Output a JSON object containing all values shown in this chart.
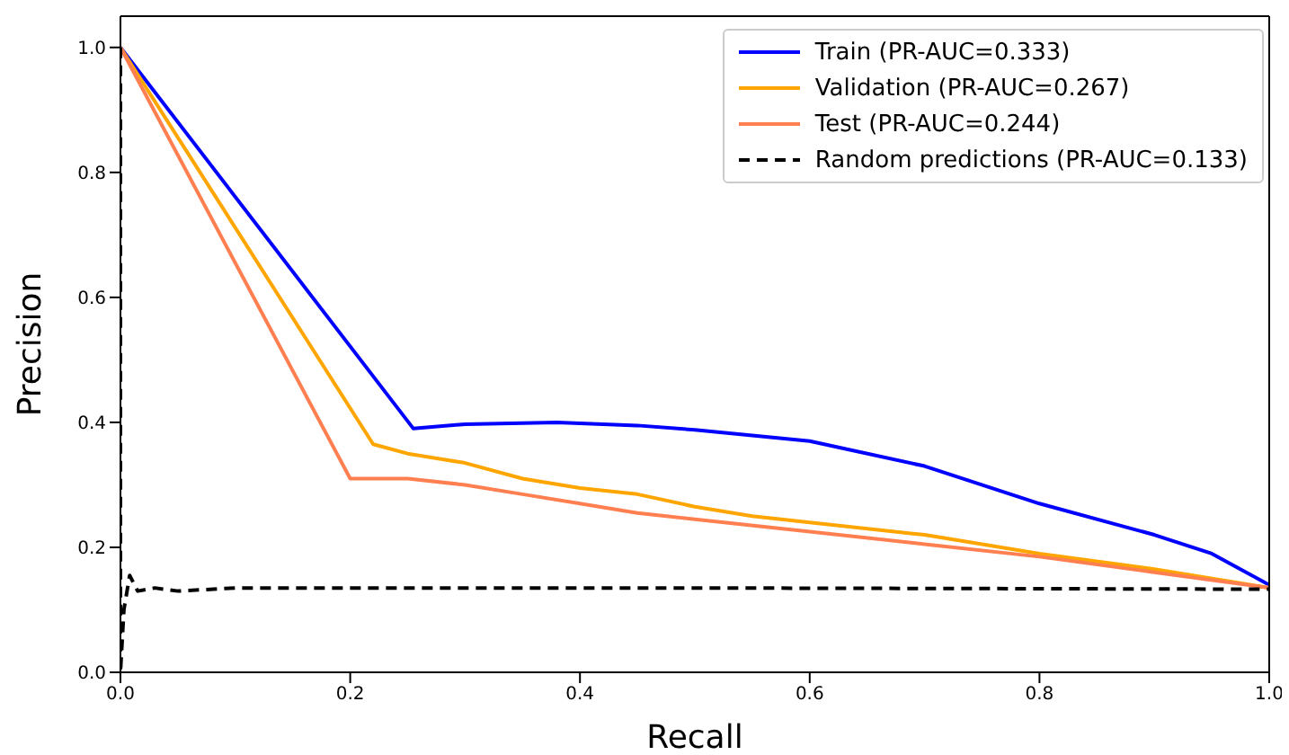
{
  "chart_data": {
    "type": "line",
    "xlabel": "Recall",
    "ylabel": "Precision",
    "xlim": [
      0,
      1
    ],
    "ylim": [
      0,
      1.05
    ],
    "xticks": [
      {
        "value": 0,
        "label": "0.0"
      },
      0.2,
      0.4,
      0.6,
      0.8,
      {
        "value": 1,
        "label": "1.0"
      }
    ],
    "yticks": [
      {
        "value": 0,
        "label": "0.0"
      },
      0.2,
      0.4,
      0.6,
      0.8,
      {
        "value": 1,
        "label": "1.0"
      }
    ],
    "legend": "top right",
    "marker": "none",
    "series": [
      {
        "name": "Train (PR-AUC=0.333)",
        "color": "#0000ff",
        "line_style": "solid",
        "x": [
          0,
          0.255,
          0.3,
          0.38,
          0.45,
          0.5,
          0.6,
          0.7,
          0.8,
          0.9,
          0.95,
          1.0
        ],
        "values": [
          1.0,
          0.39,
          0.397,
          0.4,
          0.395,
          0.388,
          0.37,
          0.33,
          0.27,
          0.22,
          0.19,
          0.14
        ]
      },
      {
        "name": "Validation (PR-AUC=0.267)",
        "color": "#ffa500",
        "line_style": "solid",
        "x": [
          0,
          0.22,
          0.25,
          0.3,
          0.35,
          0.4,
          0.45,
          0.5,
          0.55,
          0.6,
          0.7,
          0.8,
          0.9,
          1.0
        ],
        "values": [
          1.0,
          0.365,
          0.35,
          0.335,
          0.31,
          0.295,
          0.285,
          0.265,
          0.25,
          0.24,
          0.22,
          0.19,
          0.165,
          0.135
        ]
      },
      {
        "name": "Test (PR-AUC=0.244)",
        "color": "#ff7f50",
        "line_style": "solid",
        "x": [
          0,
          0.2,
          0.25,
          0.3,
          0.35,
          0.4,
          0.45,
          0.5,
          0.6,
          0.7,
          0.8,
          0.9,
          1.0
        ],
        "values": [
          1.0,
          0.31,
          0.31,
          0.3,
          0.285,
          0.27,
          0.255,
          0.245,
          0.225,
          0.205,
          0.185,
          0.16,
          0.135
        ]
      },
      {
        "name": "Random predictions (PR-AUC=0.133)",
        "color": "#000000",
        "line_style": "dashed",
        "x": [
          0,
          0,
          0.003,
          0.008,
          0.015,
          0.03,
          0.05,
          0.1,
          0.5,
          1.0
        ],
        "values": [
          1.0,
          0.0,
          0.1,
          0.155,
          0.13,
          0.135,
          0.13,
          0.135,
          0.135,
          0.133
        ]
      }
    ]
  }
}
